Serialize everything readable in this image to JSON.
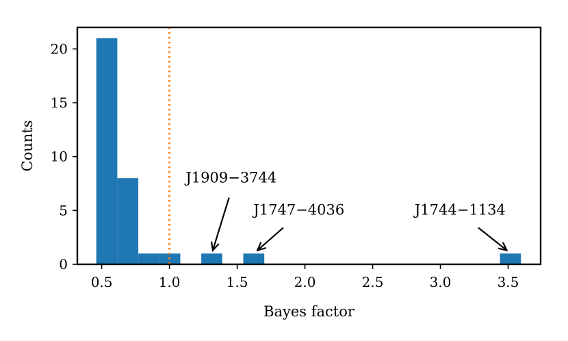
{
  "chart_data": {
    "type": "bar",
    "xlabel": "Bayes factor",
    "ylabel": "Counts",
    "xlim": [
      0.32,
      3.74
    ],
    "ylim": [
      0,
      22
    ],
    "xticks": [
      "0.5",
      "1.0",
      "1.5",
      "2.0",
      "2.5",
      "3.0",
      "3.5"
    ],
    "yticks": [
      "0",
      "5",
      "10",
      "15",
      "20"
    ],
    "grid": false,
    "bins": [
      {
        "x0": 0.46,
        "x1": 0.615,
        "count": 21
      },
      {
        "x0": 0.615,
        "x1": 0.77,
        "count": 8
      },
      {
        "x0": 0.77,
        "x1": 0.925,
        "count": 1
      },
      {
        "x0": 0.925,
        "x1": 1.08,
        "count": 1
      },
      {
        "x0": 1.08,
        "x1": 1.235,
        "count": 0
      },
      {
        "x0": 1.235,
        "x1": 1.39,
        "count": 1
      },
      {
        "x0": 1.39,
        "x1": 1.545,
        "count": 0
      },
      {
        "x0": 1.545,
        "x1": 1.7,
        "count": 1
      },
      {
        "x0": 3.44,
        "x1": 3.595,
        "count": 1
      }
    ],
    "reference_line": {
      "x": 1.0,
      "style": "dotted",
      "color": "#ff7f0e"
    },
    "bar_color": "#1f77b4",
    "annotations": [
      {
        "text": "J1909−3744",
        "text_x": 1.12,
        "text_y": 7.6,
        "arrow_from": [
          1.44,
          6.2
        ],
        "arrow_to": [
          1.32,
          1.3
        ]
      },
      {
        "text": "J1747−4036",
        "text_x": 1.62,
        "text_y": 4.6,
        "arrow_from": [
          1.84,
          3.4
        ],
        "arrow_to": [
          1.65,
          1.3
        ]
      },
      {
        "text": "J1744−1134",
        "text_x": 2.81,
        "text_y": 4.6,
        "arrow_from": [
          3.28,
          3.4
        ],
        "arrow_to": [
          3.49,
          1.3
        ]
      }
    ]
  }
}
